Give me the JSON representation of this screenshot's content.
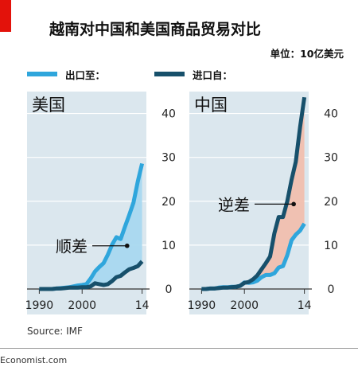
{
  "header": {
    "title": "越南对中国和美国商品贸易对比",
    "unit": "单位：10亿美元"
  },
  "legend": [
    {
      "label": "出口至：",
      "color": "#2fa6dc"
    },
    {
      "label": "进口自：",
      "color": "#17506b"
    }
  ],
  "chart_data": [
    {
      "type": "line",
      "panel_label": "美国",
      "annotation": "顺差",
      "annotation_year": 2010.5,
      "x": [
        1990,
        1991,
        1992,
        1993,
        1994,
        1995,
        1996,
        1997,
        1998,
        1999,
        2000,
        2001,
        2002,
        2003,
        2004,
        2005,
        2006,
        2007,
        2008,
        2009,
        2010,
        2011,
        2012,
        2013,
        2014
      ],
      "series": [
        {
          "name": "出口至：",
          "values": [
            0,
            0,
            0,
            0,
            0.1,
            0.2,
            0.3,
            0.4,
            0.6,
            0.8,
            0.9,
            1.1,
            2.4,
            4.0,
            5.0,
            5.9,
            7.8,
            10.1,
            11.8,
            11.4,
            14.2,
            16.9,
            19.7,
            24.5,
            28.6
          ]
        },
        {
          "name": "进口自：",
          "values": [
            0,
            0,
            0,
            0,
            0.1,
            0.1,
            0.2,
            0.3,
            0.3,
            0.3,
            0.4,
            0.4,
            0.6,
            1.3,
            1.1,
            0.9,
            1.1,
            1.8,
            2.7,
            3.0,
            3.8,
            4.5,
            4.8,
            5.2,
            6.3
          ]
        }
      ],
      "xticks": [
        "1990",
        "2000",
        "14"
      ],
      "xtick_values": [
        1990,
        2000,
        2014
      ],
      "yticks": [
        "0",
        "10",
        "20",
        "30",
        "40"
      ],
      "ytick_values": [
        0,
        10,
        20,
        30,
        40
      ],
      "xlim": [
        1989,
        2015
      ],
      "ylim": [
        0,
        45
      ],
      "fill_color": "#a9d8ef"
    },
    {
      "type": "line",
      "panel_label": "中国",
      "annotation": "逆差",
      "annotation_year": 2011.5,
      "x": [
        1990,
        1991,
        1992,
        1993,
        1994,
        1995,
        1996,
        1997,
        1998,
        1999,
        2000,
        2001,
        2002,
        2003,
        2004,
        2005,
        2006,
        2007,
        2008,
        2009,
        2010,
        2011,
        2012,
        2013,
        2014
      ],
      "series": [
        {
          "name": "出口至：",
          "values": [
            0,
            0,
            0.1,
            0.1,
            0.3,
            0.4,
            0.4,
            0.5,
            0.5,
            0.7,
            1.5,
            1.4,
            1.5,
            1.9,
            2.7,
            3.2,
            3.2,
            3.6,
            4.9,
            5.2,
            7.7,
            11.1,
            12.4,
            13.3,
            14.9
          ]
        },
        {
          "name": "进口自：",
          "values": [
            0,
            0,
            0.1,
            0.1,
            0.2,
            0.3,
            0.3,
            0.4,
            0.5,
            0.7,
            1.4,
            1.6,
            2.2,
            3.1,
            4.5,
            5.9,
            7.4,
            12.7,
            16.4,
            16.4,
            20.0,
            24.9,
            29.0,
            36.9,
            43.7
          ]
        }
      ],
      "xticks": [
        "1990",
        "2000",
        "14"
      ],
      "xtick_values": [
        1990,
        2000,
        2014
      ],
      "yticks": [
        "0",
        "10",
        "20",
        "30",
        "40"
      ],
      "ytick_values": [
        0,
        10,
        20,
        30,
        40
      ],
      "xlim": [
        1989,
        2015
      ],
      "ylim": [
        0,
        45
      ],
      "fill_color": "#f1bfae"
    }
  ],
  "source": "Source: IMF",
  "footer": "Economist.com"
}
